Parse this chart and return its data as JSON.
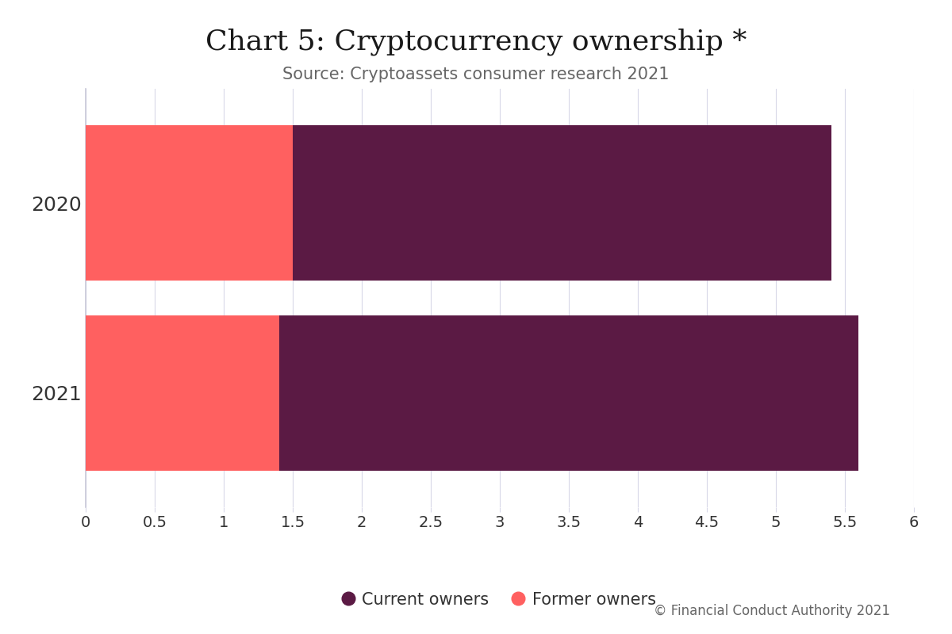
{
  "title": "Chart 5: Cryptocurrency ownership *",
  "subtitle": "Source: Cryptoassets consumer research 2021",
  "copyright": "© Financial Conduct Authority 2021",
  "categories": [
    "2021",
    "2020"
  ],
  "former_owners": [
    1.4,
    1.5
  ],
  "current_owners": [
    4.2,
    3.9
  ],
  "former_color": "#FF6060",
  "current_color": "#5B1A44",
  "background_color": "#FFFFFF",
  "xlim": [
    0,
    6
  ],
  "xticks": [
    0,
    0.5,
    1,
    1.5,
    2,
    2.5,
    3,
    3.5,
    4,
    4.5,
    5,
    5.5,
    6
  ],
  "title_fontsize": 26,
  "subtitle_fontsize": 15,
  "legend_fontsize": 15,
  "tick_fontsize": 14,
  "ylabel_fontsize": 18,
  "copyright_fontsize": 12,
  "bar_height": 0.82,
  "title_font": "serif",
  "body_font": "sans-serif",
  "grid_color": "#D8D8E8",
  "spine_color": "#C8C8D8",
  "label_color": "#333333",
  "subtitle_color": "#666666",
  "copyright_color": "#666666"
}
